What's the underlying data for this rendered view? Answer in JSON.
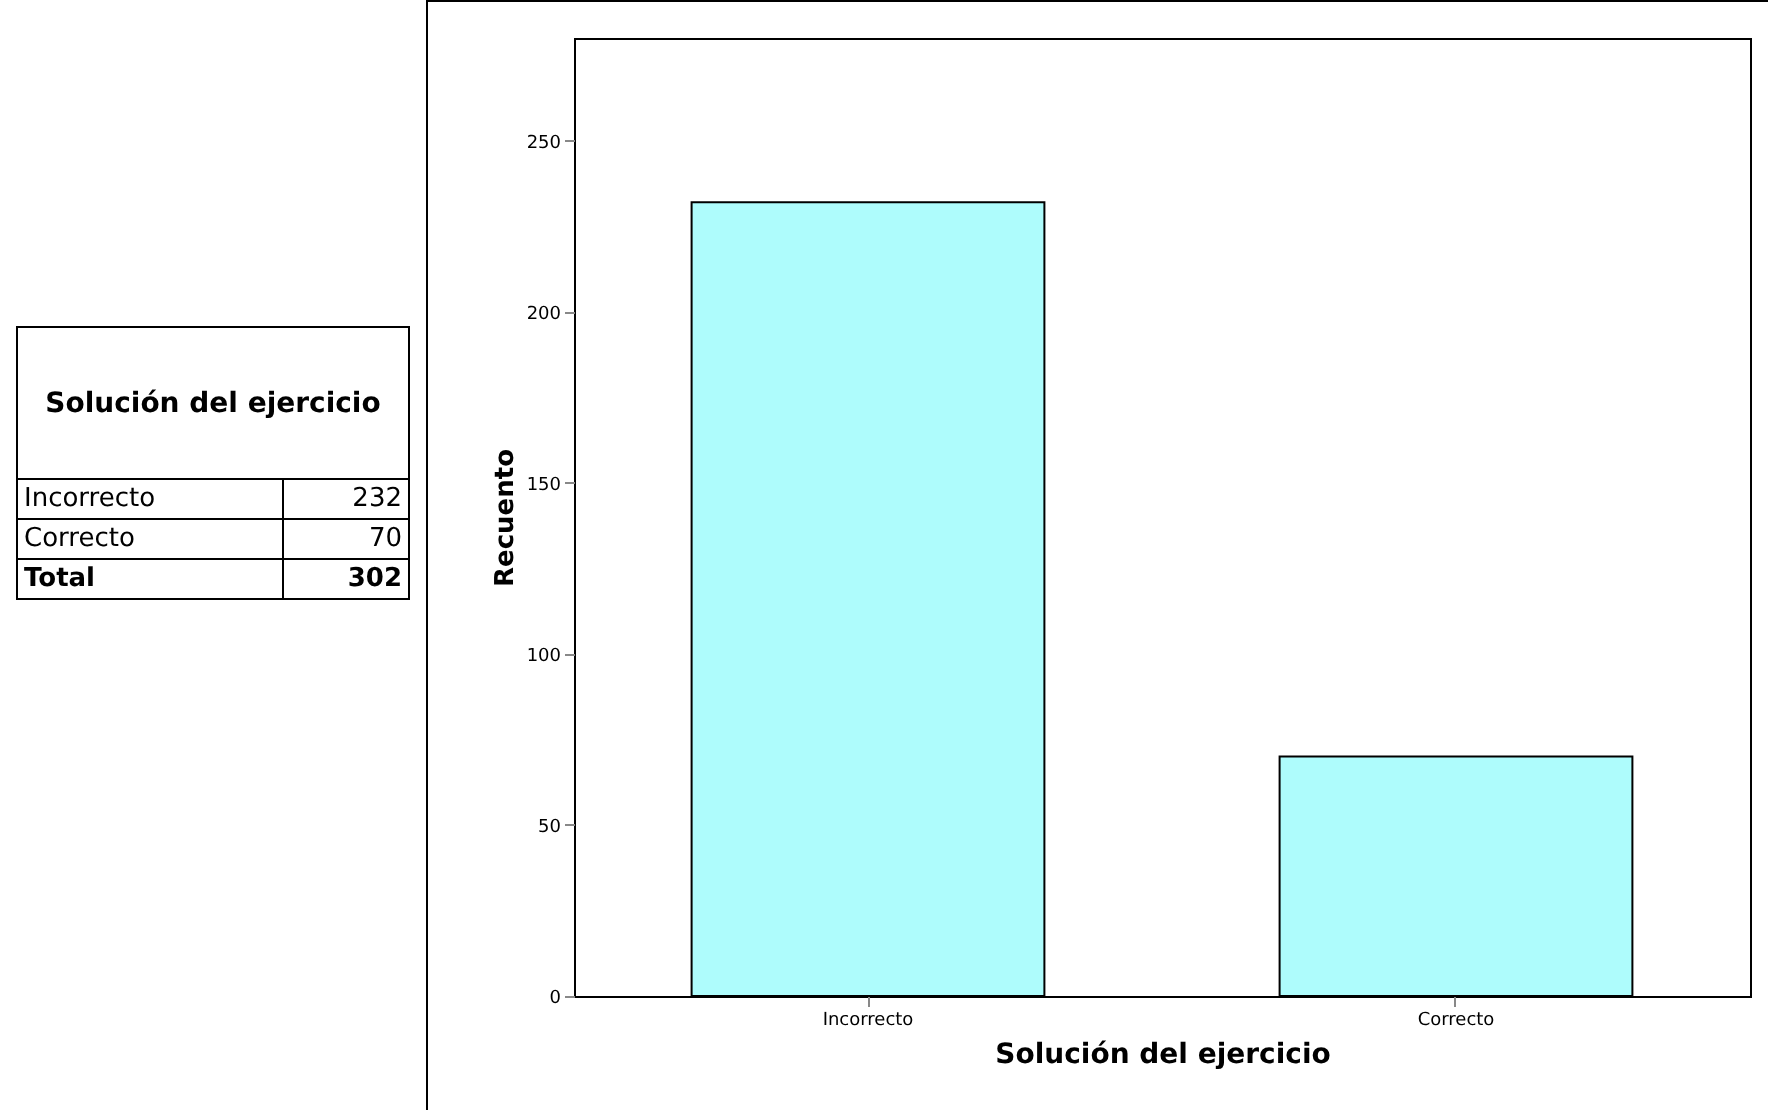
{
  "chart_data": {
    "type": "bar",
    "xlabel": "Solución del ejercicio",
    "ylabel": "Recuento",
    "categories": [
      "Incorrecto",
      "Correcto"
    ],
    "values": [
      232,
      70
    ],
    "color": "#aefcfc",
    "ylim": [
      0,
      280
    ],
    "yticks": [
      0,
      50,
      100,
      150,
      200,
      250
    ],
    "annotations": [
      "232",
      "70",
      "Total",
      "302"
    ]
  }
}
